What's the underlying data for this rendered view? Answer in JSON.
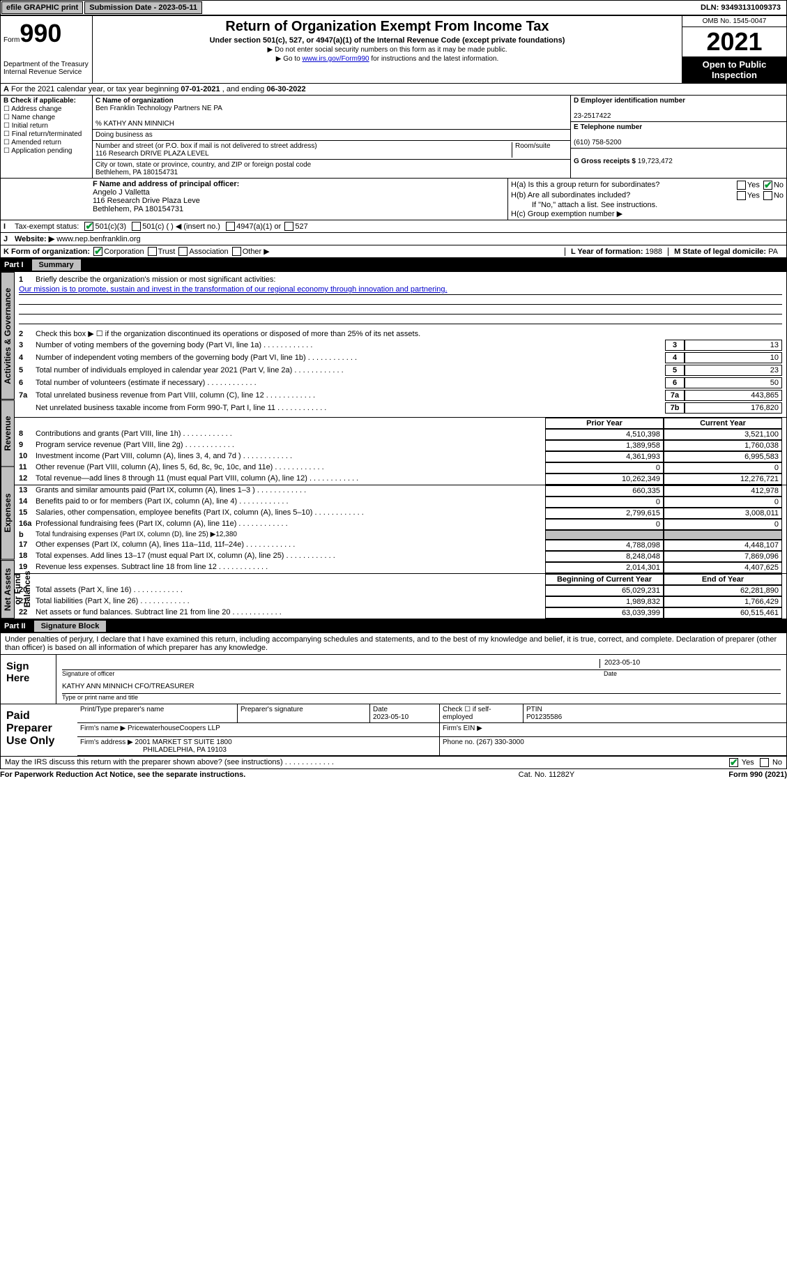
{
  "topbar": {
    "efile": "efile GRAPHIC print",
    "subdate_label": "Submission Date - ",
    "subdate": "2023-05-11",
    "dln_label": "DLN: ",
    "dln": "93493131009373"
  },
  "header": {
    "form_word": "Form",
    "form_num": "990",
    "dept": "Department of the Treasury Internal Revenue Service",
    "title": "Return of Organization Exempt From Income Tax",
    "sub": "Under section 501(c), 527, or 4947(a)(1) of the Internal Revenue Code (except private foundations)",
    "note1": "▶ Do not enter social security numbers on this form as it may be made public.",
    "note2_pre": "▶ Go to ",
    "note2_link": "www.irs.gov/Form990",
    "note2_post": " for instructions and the latest information.",
    "omb": "OMB No. 1545-0047",
    "year": "2021",
    "open": "Open to Public Inspection"
  },
  "sectionA": {
    "text_pre": "For the 2021 calendar year, or tax year beginning ",
    "begin": "07-01-2021",
    "mid": " , and ending ",
    "end": "06-30-2022"
  },
  "colB": {
    "hdr": "B Check if applicable:",
    "items": [
      "Address change",
      "Name change",
      "Initial return",
      "Final return/terminated",
      "Amended return",
      "Application pending"
    ]
  },
  "colC": {
    "name_label": "C Name of organization",
    "name": "Ben Franklin Technology Partners NE PA",
    "care_label": "% KATHY ANN MINNICH",
    "dba_label": "Doing business as",
    "street_label": "Number and street (or P.O. box if mail is not delivered to street address)",
    "room_label": "Room/suite",
    "street": "116 Research DRIVE PLAZA LEVEL",
    "city_label": "City or town, state or province, country, and ZIP or foreign postal code",
    "city": "Bethlehem, PA  180154731"
  },
  "colD": {
    "ein_label": "D Employer identification number",
    "ein": "23-2517422",
    "phone_label": "E Telephone number",
    "phone": "(610) 758-5200",
    "gross_label": "G Gross receipts $ ",
    "gross": "19,723,472"
  },
  "rowF": {
    "label": "F Name and address of principal officer:",
    "name": "Angelo J Valletta",
    "addr1": "116 Research Drive Plaza Leve",
    "addr2": "Bethlehem, PA  180154731"
  },
  "rowH": {
    "ha": "H(a)  Is this a group return for subordinates?",
    "hb": "H(b)  Are all subordinates included?",
    "hb_note": "If \"No,\" attach a list. See instructions.",
    "hc": "H(c)  Group exemption number ▶",
    "yes": "Yes",
    "no": "No"
  },
  "rowI": {
    "label": "Tax-exempt status:",
    "o1": "501(c)(3)",
    "o2": "501(c) (  ) ◀ (insert no.)",
    "o3": "4947(a)(1) or",
    "o4": "527"
  },
  "rowJ": {
    "label": "Website: ▶",
    "val": "www.nep.benfranklin.org"
  },
  "rowK": {
    "label": "K Form of organization:",
    "o1": "Corporation",
    "o2": "Trust",
    "o3": "Association",
    "o4": "Other ▶",
    "l_label": "L Year of formation: ",
    "l_val": "1988",
    "m_label": "M State of legal domicile: ",
    "m_val": "PA"
  },
  "part1": {
    "hdr_num": "Part I",
    "hdr_title": "Summary",
    "tab_ag": "Activities & Governance",
    "tab_rev": "Revenue",
    "tab_exp": "Expenses",
    "tab_net": "Net Assets or Fund Balances",
    "l1": "Briefly describe the organization's mission or most significant activities:",
    "mission": "Our mission is to promote, sustain and invest in the transformation of our regional economy through innovation and partnering.",
    "l2": "Check this box ▶ ☐  if the organization discontinued its operations or disposed of more than 25% of its net assets.",
    "rows_ag": [
      {
        "n": "3",
        "d": "Number of voting members of the governing body (Part VI, line 1a)",
        "bn": "3",
        "v": "13"
      },
      {
        "n": "4",
        "d": "Number of independent voting members of the governing body (Part VI, line 1b)",
        "bn": "4",
        "v": "10"
      },
      {
        "n": "5",
        "d": "Total number of individuals employed in calendar year 2021 (Part V, line 2a)",
        "bn": "5",
        "v": "23"
      },
      {
        "n": "6",
        "d": "Total number of volunteers (estimate if necessary)",
        "bn": "6",
        "v": "50"
      },
      {
        "n": "7a",
        "d": "Total unrelated business revenue from Part VIII, column (C), line 12",
        "bn": "7a",
        "v": "443,865"
      },
      {
        "n": "",
        "d": "Net unrelated business taxable income from Form 990-T, Part I, line 11",
        "bn": "7b",
        "v": "176,820"
      }
    ],
    "col_hdr_prior": "Prior Year",
    "col_hdr_curr": "Current Year",
    "rows_rev": [
      {
        "n": "8",
        "d": "Contributions and grants (Part VIII, line 1h)",
        "p": "4,510,398",
        "c": "3,521,100"
      },
      {
        "n": "9",
        "d": "Program service revenue (Part VIII, line 2g)",
        "p": "1,389,958",
        "c": "1,760,038"
      },
      {
        "n": "10",
        "d": "Investment income (Part VIII, column (A), lines 3, 4, and 7d )",
        "p": "4,361,993",
        "c": "6,995,583"
      },
      {
        "n": "11",
        "d": "Other revenue (Part VIII, column (A), lines 5, 6d, 8c, 9c, 10c, and 11e)",
        "p": "0",
        "c": "0"
      },
      {
        "n": "12",
        "d": "Total revenue—add lines 8 through 11 (must equal Part VIII, column (A), line 12)",
        "p": "10,262,349",
        "c": "12,276,721"
      }
    ],
    "rows_exp": [
      {
        "n": "13",
        "d": "Grants and similar amounts paid (Part IX, column (A), lines 1–3 )",
        "p": "660,335",
        "c": "412,978"
      },
      {
        "n": "14",
        "d": "Benefits paid to or for members (Part IX, column (A), line 4)",
        "p": "0",
        "c": "0"
      },
      {
        "n": "15",
        "d": "Salaries, other compensation, employee benefits (Part IX, column (A), lines 5–10)",
        "p": "2,799,615",
        "c": "3,008,011"
      },
      {
        "n": "16a",
        "d": "Professional fundraising fees (Part IX, column (A), line 11e)",
        "p": "0",
        "c": "0"
      },
      {
        "n": "b",
        "d": "Total fundraising expenses (Part IX, column (D), line 25) ▶12,380",
        "p": null,
        "c": null,
        "grey": true
      },
      {
        "n": "17",
        "d": "Other expenses (Part IX, column (A), lines 11a–11d, 11f–24e)",
        "p": "4,788,098",
        "c": "4,448,107"
      },
      {
        "n": "18",
        "d": "Total expenses. Add lines 13–17 (must equal Part IX, column (A), line 25)",
        "p": "8,248,048",
        "c": "7,869,096"
      },
      {
        "n": "19",
        "d": "Revenue less expenses. Subtract line 18 from line 12",
        "p": "2,014,301",
        "c": "4,407,625"
      }
    ],
    "col_hdr_begin": "Beginning of Current Year",
    "col_hdr_end": "End of Year",
    "rows_net": [
      {
        "n": "20",
        "d": "Total assets (Part X, line 16)",
        "p": "65,029,231",
        "c": "62,281,890"
      },
      {
        "n": "21",
        "d": "Total liabilities (Part X, line 26)",
        "p": "1,989,832",
        "c": "1,766,429"
      },
      {
        "n": "22",
        "d": "Net assets or fund balances. Subtract line 21 from line 20",
        "p": "63,039,399",
        "c": "60,515,461"
      }
    ]
  },
  "part2": {
    "hdr_num": "Part II",
    "hdr_title": "Signature Block",
    "decl": "Under penalties of perjury, I declare that I have examined this return, including accompanying schedules and statements, and to the best of my knowledge and belief, it is true, correct, and complete. Declaration of preparer (other than officer) is based on all information of which preparer has any knowledge.",
    "sign_here": "Sign Here",
    "sig_officer": "Signature of officer",
    "sig_date": "Date",
    "sig_date_val": "2023-05-10",
    "sig_name": "KATHY ANN MINNICH  CFO/TREASURER",
    "sig_name_label": "Type or print name and title",
    "paid": "Paid Preparer Use Only",
    "pp_name_label": "Print/Type preparer's name",
    "pp_sig_label": "Preparer's signature",
    "pp_date_label": "Date",
    "pp_date": "2023-05-10",
    "pp_check_label": "Check ☐ if self-employed",
    "pp_ptin_label": "PTIN",
    "pp_ptin": "P01235586",
    "firm_name_label": "Firm's name    ▶",
    "firm_name": "PricewaterhouseCoopers LLP",
    "firm_ein_label": "Firm's EIN ▶",
    "firm_addr_label": "Firm's address ▶",
    "firm_addr1": "2001 MARKET ST SUITE 1800",
    "firm_addr2": "PHILADELPHIA, PA  19103",
    "firm_phone_label": "Phone no. ",
    "firm_phone": "(267) 330-3000",
    "discuss": "May the IRS discuss this return with the preparer shown above? (see instructions)",
    "yes": "Yes",
    "no": "No"
  },
  "footer": {
    "left": "For Paperwork Reduction Act Notice, see the separate instructions.",
    "center": "Cat. No. 11282Y",
    "right": "Form 990 (2021)"
  }
}
